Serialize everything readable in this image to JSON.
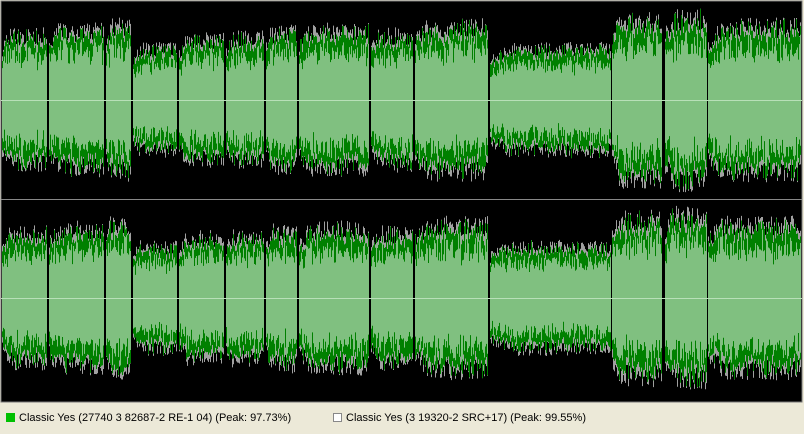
{
  "legend": {
    "items": [
      {
        "label": "Classic Yes (27740 3 82687-2 RE-1 04) (Peak: 97.73%)",
        "color": "#00c000"
      },
      {
        "label": "Classic Yes (3 19320-2 SRC+17) (Peak: 99.55%)",
        "color": "#ffffff"
      }
    ]
  }
}
